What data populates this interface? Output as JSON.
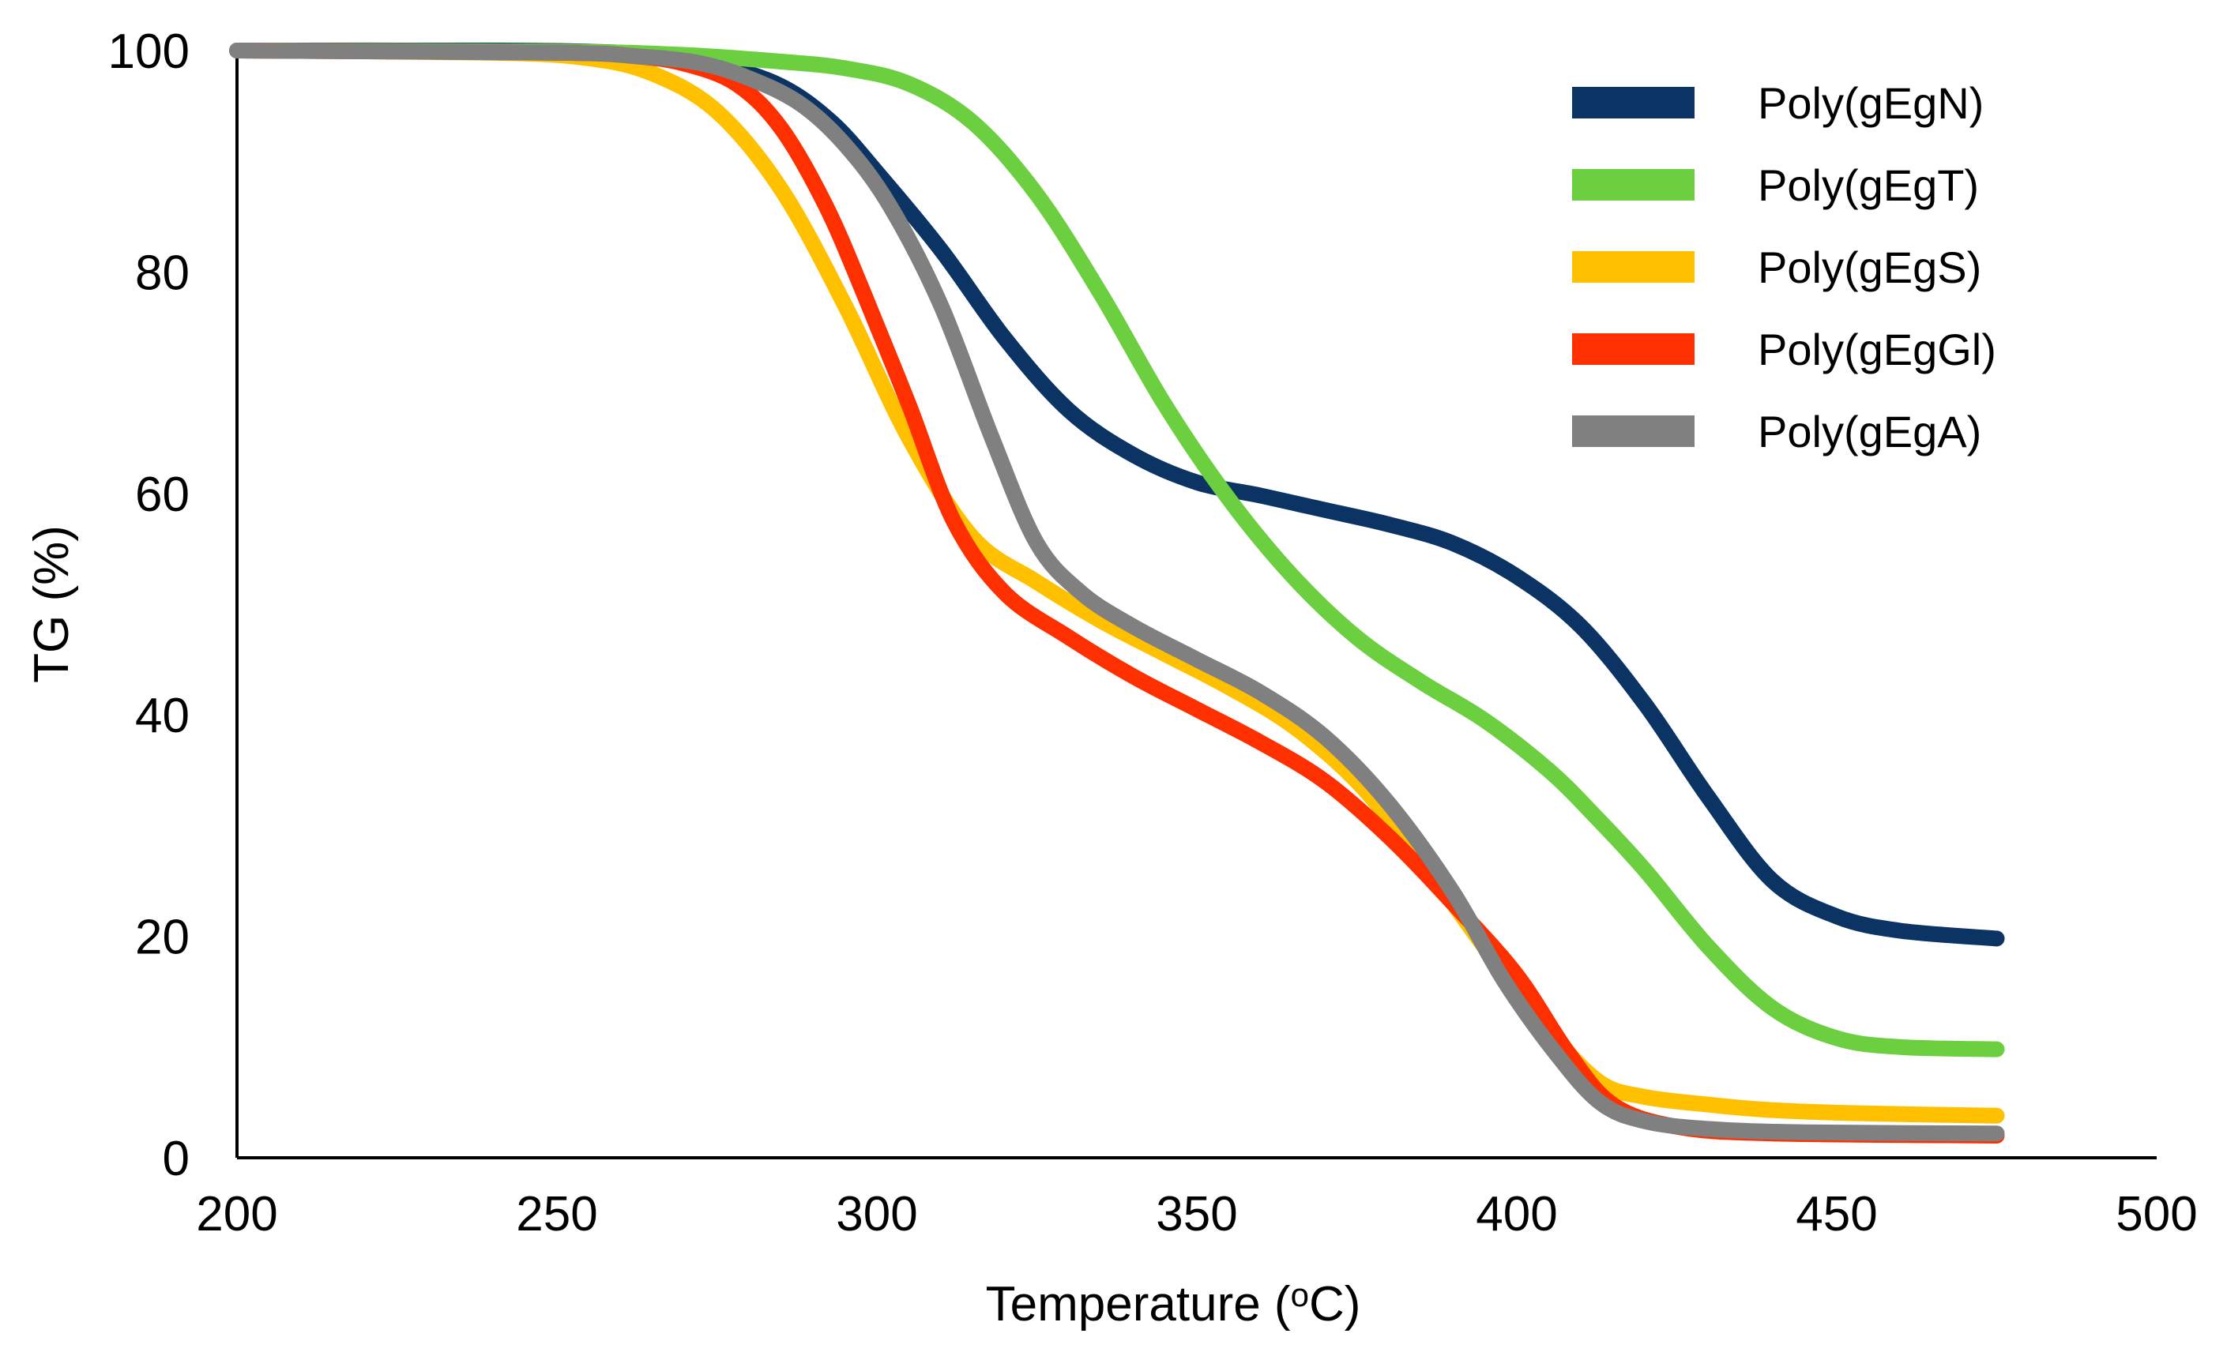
{
  "chart_data": {
    "type": "line",
    "xlabel": "Temperature (",
    "xlabel_sup": "o",
    "xlabel_end": "C)",
    "ylabel": "TG (%)",
    "xlim": [
      200,
      500
    ],
    "ylim": [
      0,
      100
    ],
    "x_ticks": [
      200,
      250,
      300,
      350,
      400,
      450,
      500
    ],
    "y_ticks": [
      0,
      20,
      40,
      60,
      80,
      100
    ],
    "grid": false,
    "legend_position": "top-right",
    "series": [
      {
        "name": "Poly(gEgN)",
        "color": "#0b3464",
        "points": [
          [
            200,
            100
          ],
          [
            240,
            100
          ],
          [
            255,
            99.9
          ],
          [
            265,
            99.6
          ],
          [
            275,
            98.7
          ],
          [
            285,
            96.8
          ],
          [
            293,
            93.5
          ],
          [
            300,
            89
          ],
          [
            310,
            82
          ],
          [
            320,
            74
          ],
          [
            330,
            67.5
          ],
          [
            340,
            63.5
          ],
          [
            350,
            61
          ],
          [
            360,
            59.8
          ],
          [
            370,
            58.5
          ],
          [
            380,
            57.2
          ],
          [
            390,
            55.5
          ],
          [
            400,
            52.5
          ],
          [
            410,
            48
          ],
          [
            420,
            41
          ],
          [
            430,
            32.5
          ],
          [
            440,
            25
          ],
          [
            450,
            21.8
          ],
          [
            460,
            20.5
          ],
          [
            475,
            19.8
          ]
        ]
      },
      {
        "name": "Poly(gEgT)",
        "color": "#6ccf40",
        "points": [
          [
            200,
            100
          ],
          [
            250,
            99.9
          ],
          [
            270,
            99.6
          ],
          [
            285,
            99
          ],
          [
            295,
            98.4
          ],
          [
            305,
            97
          ],
          [
            315,
            93.5
          ],
          [
            325,
            87
          ],
          [
            335,
            78
          ],
          [
            345,
            68
          ],
          [
            355,
            59.5
          ],
          [
            365,
            52.5
          ],
          [
            375,
            47
          ],
          [
            385,
            43
          ],
          [
            395,
            39.5
          ],
          [
            405,
            35
          ],
          [
            412,
            31
          ],
          [
            420,
            26
          ],
          [
            430,
            19
          ],
          [
            440,
            13.5
          ],
          [
            450,
            10.8
          ],
          [
            460,
            10
          ],
          [
            475,
            9.8
          ]
        ]
      },
      {
        "name": "Poly(gEgS)",
        "color": "#ffc000",
        "points": [
          [
            200,
            100
          ],
          [
            240,
            99.8
          ],
          [
            255,
            99.3
          ],
          [
            265,
            97.9
          ],
          [
            275,
            94.5
          ],
          [
            285,
            87.5
          ],
          [
            295,
            77
          ],
          [
            305,
            65
          ],
          [
            315,
            56
          ],
          [
            325,
            52
          ],
          [
            335,
            48.5
          ],
          [
            345,
            45.5
          ],
          [
            355,
            42.5
          ],
          [
            365,
            39
          ],
          [
            375,
            34
          ],
          [
            385,
            27
          ],
          [
            395,
            19
          ],
          [
            405,
            11.5
          ],
          [
            413,
            6.8
          ],
          [
            420,
            5.5
          ],
          [
            430,
            4.8
          ],
          [
            440,
            4.3
          ],
          [
            455,
            4
          ],
          [
            475,
            3.8
          ]
        ]
      },
      {
        "name": "Poly(gEgGl)",
        "color": "#ff3000",
        "points": [
          [
            200,
            100
          ],
          [
            250,
            99.8
          ],
          [
            262,
            99.5
          ],
          [
            270,
            98.8
          ],
          [
            278,
            97
          ],
          [
            285,
            93
          ],
          [
            292,
            86
          ],
          [
            298,
            78
          ],
          [
            305,
            68
          ],
          [
            312,
            57.5
          ],
          [
            320,
            51
          ],
          [
            330,
            47
          ],
          [
            340,
            43.5
          ],
          [
            350,
            40.5
          ],
          [
            360,
            37.5
          ],
          [
            370,
            34
          ],
          [
            380,
            29
          ],
          [
            390,
            23
          ],
          [
            400,
            16.5
          ],
          [
            408,
            9.5
          ],
          [
            415,
            4.8
          ],
          [
            425,
            2.8
          ],
          [
            440,
            2.2
          ],
          [
            475,
            2
          ]
        ]
      },
      {
        "name": "Poly(gEgA)",
        "color": "#808080",
        "points": [
          [
            200,
            100
          ],
          [
            250,
            99.8
          ],
          [
            262,
            99.5
          ],
          [
            272,
            98.9
          ],
          [
            280,
            97.5
          ],
          [
            288,
            95.2
          ],
          [
            295,
            91.5
          ],
          [
            302,
            86
          ],
          [
            310,
            77
          ],
          [
            318,
            65
          ],
          [
            325,
            55.5
          ],
          [
            332,
            51
          ],
          [
            340,
            48
          ],
          [
            350,
            45
          ],
          [
            360,
            42
          ],
          [
            370,
            38
          ],
          [
            380,
            32
          ],
          [
            390,
            24
          ],
          [
            398,
            16
          ],
          [
            406,
            9.5
          ],
          [
            413,
            5
          ],
          [
            420,
            3.3
          ],
          [
            430,
            2.6
          ],
          [
            445,
            2.3
          ],
          [
            475,
            2.2
          ]
        ]
      }
    ]
  }
}
